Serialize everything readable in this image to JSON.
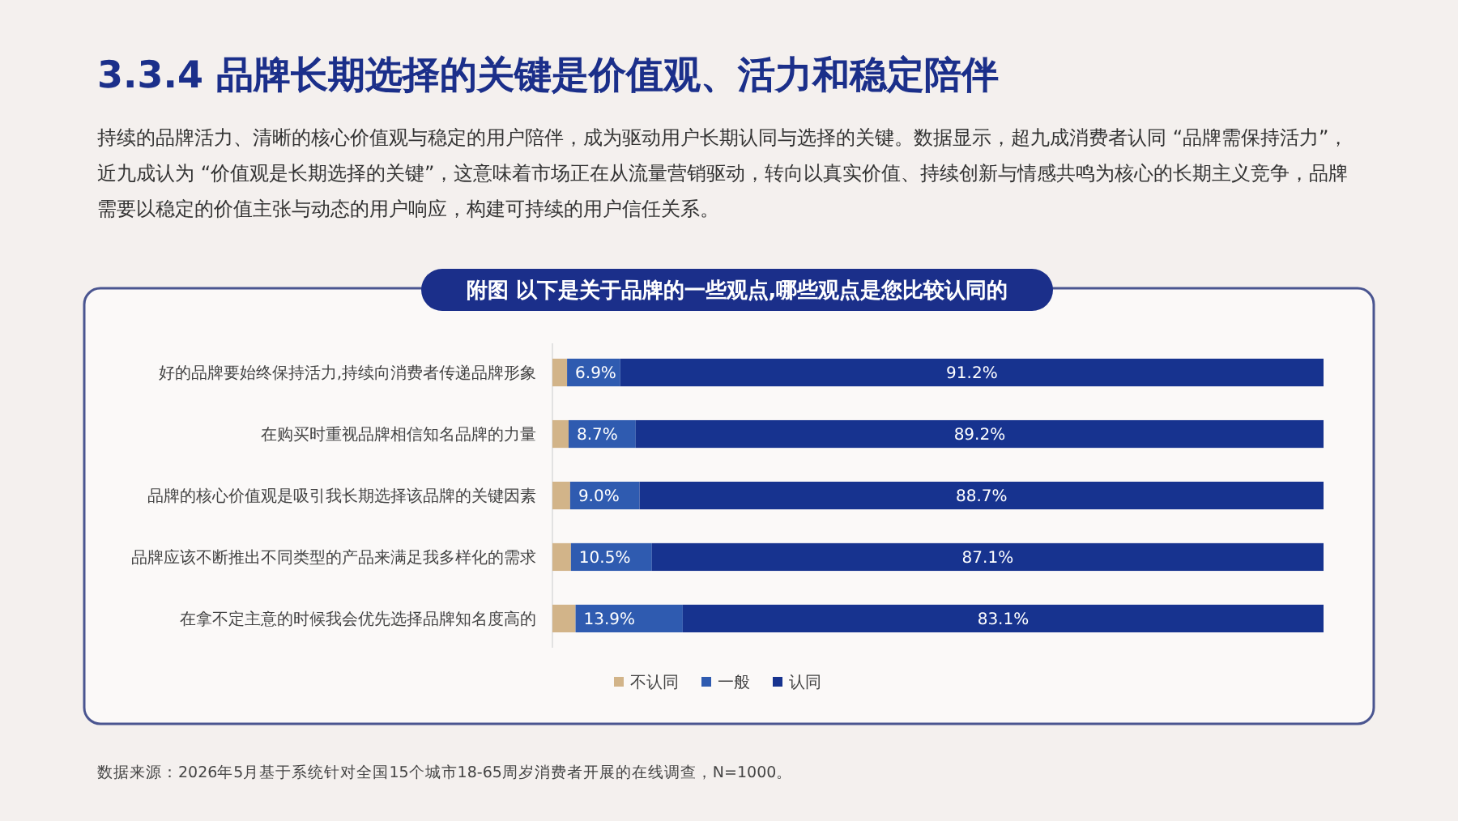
{
  "chart_data": {
    "type": "bar",
    "orientation": "horizontal",
    "stacked": true,
    "title": "3.3.4  品牌长期选择的关键是价值观、活力和稳定陪伴",
    "subtitle": "附图  以下是关于品牌的一些观点,哪些观点是您比较认同的",
    "annotations": [
      "持续的品牌活力、清晰的核心价值观与稳定的用户陪伴，成为驱动用户长期认同与选择的关键。数据显示，超九成消费者认同 “品牌需保持活力”，近九成认为 “价值观是长期选择的关键”，这意味着市场正在从流量营销驱动，转向以真实价值、持续创新与情感共鸣为核心的长期主义竞争，品牌需要以稳定的价值主张与动态的用户响应，构建可持续的用户信任关系。",
      "数据来源：2026年5月基于系统针对全国15个城市18-65周岁消费者开展的在线调查，N=1000。"
    ],
    "categories": [
      "好的品牌要始终保持活力,持续向消费者传递品牌形象",
      "在购买时重视品牌相信知名品牌的力量",
      "品牌的核心价值观是吸引我长期选择该品牌的关键因素",
      "品牌应该不断推出不同类型的产品来满足我多样化的需求",
      "在拿不定主意的时候我会优先选择品牌知名度高的"
    ],
    "series": [
      {
        "name": "不认同",
        "color": "#d2b489",
        "values": [
          1.9,
          2.1,
          2.3,
          2.4,
          3.0
        ]
      },
      {
        "name": "一般",
        "color": "#2f5bb0",
        "values": [
          6.9,
          8.7,
          9.0,
          10.5,
          13.9
        ],
        "value_labels": [
          "6.9%",
          "8.7%",
          "9.0%",
          "10.5%",
          "13.9%"
        ]
      },
      {
        "name": "认同",
        "color": "#17338f",
        "values": [
          91.2,
          89.2,
          88.7,
          87.1,
          83.1
        ],
        "value_labels": [
          "91.2%",
          "89.2%",
          "88.7%",
          "87.1%",
          "83.1%"
        ]
      }
    ],
    "legend": "bottom",
    "grid": false
  }
}
